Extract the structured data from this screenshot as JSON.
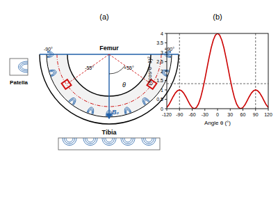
{
  "diagram": {
    "panel_label": "(a)",
    "femur": "Femur",
    "tibia": "Tibia",
    "patella": "Patella",
    "field_label": "B₀",
    "angle_symbol": "θ",
    "ends": [
      {
        "value": -90,
        "label": "-90°"
      },
      {
        "value": 90,
        "label": "+90°"
      }
    ],
    "sample_angles": [
      {
        "value": -55,
        "label": "-55°"
      },
      {
        "value": 55,
        "label": "+55°"
      }
    ]
  },
  "chart_data": {
    "type": "line",
    "panel_label": "(b)",
    "x_label": "Angle θ (°)",
    "y_label": "(3cos²θ−1)²",
    "x": [
      -120,
      -115,
      -110,
      -105,
      -100,
      -95,
      -90,
      -85,
      -80,
      -75,
      -70,
      -65,
      -60,
      -55,
      -50,
      -45,
      -40,
      -35,
      -30,
      -25,
      -20,
      -15,
      -10,
      -5,
      0,
      5,
      10,
      15,
      20,
      25,
      30,
      35,
      40,
      45,
      50,
      55,
      60,
      65,
      70,
      75,
      80,
      85,
      90,
      95,
      100,
      105,
      110,
      115,
      120
    ],
    "values": [
      0.06,
      0.21,
      0.42,
      0.64,
      0.83,
      0.95,
      1,
      0.95,
      0.83,
      0.64,
      0.42,
      0.21,
      0.06,
      0,
      0.06,
      0.25,
      0.58,
      1.03,
      1.56,
      2.14,
      2.72,
      3.24,
      3.65,
      3.91,
      4,
      3.91,
      3.65,
      3.24,
      2.72,
      2.14,
      1.56,
      1.03,
      0.58,
      0.25,
      0.06,
      0,
      0.06,
      0.21,
      0.42,
      0.64,
      0.83,
      0.95,
      1,
      0.95,
      0.83,
      0.64,
      0.42,
      0.21,
      0.06
    ],
    "color": "#cc0000",
    "xlim": [
      -120,
      120
    ],
    "xticks": [
      -120,
      -90,
      -60,
      -30,
      0,
      30,
      60,
      90,
      120
    ],
    "ylim": [
      0,
      4
    ],
    "yticks": [
      0,
      0.5,
      1,
      1.5,
      2,
      2.5,
      3,
      3.5,
      4
    ],
    "vlines": [
      -90,
      90
    ],
    "hlines": [
      1.33
    ],
    "grid": false
  }
}
